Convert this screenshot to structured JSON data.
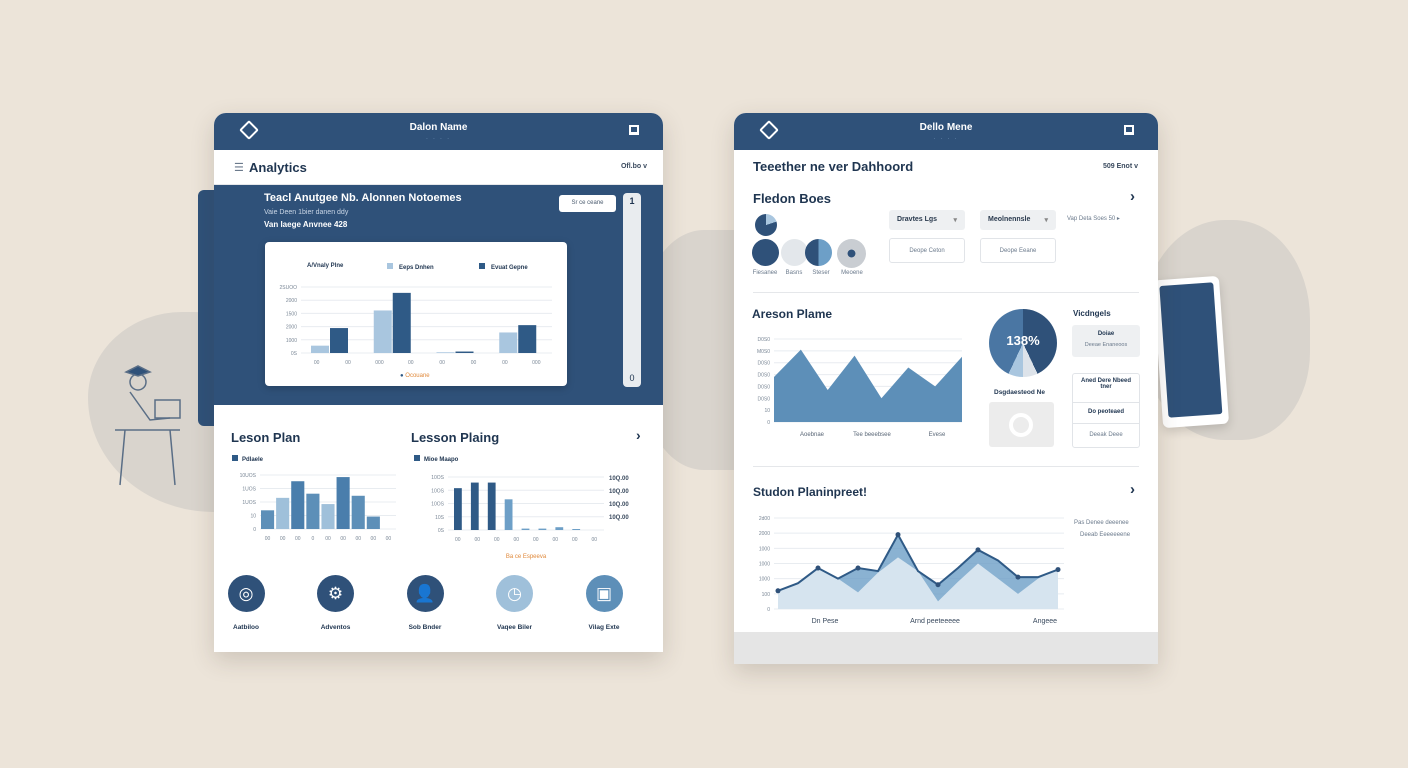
{
  "left_panel": {
    "header": {
      "title": "Dalon Name",
      "subtitle": "· · · ·"
    },
    "toolbar": {
      "title": "Analytics",
      "user_menu": "Ofl.bo v"
    },
    "hero": {
      "title": "Teacl Anutgee Nb. Alonnen Notoemes",
      "subtitle": "Vaie Deen 1bier danen ddy",
      "highlight": "Van Iaege Anvnee 428",
      "button": "Sr ce ceane"
    },
    "scroll": {
      "top": "1",
      "bottom": "0"
    },
    "main_chart": {
      "title": "A/Vnaly Plne",
      "legend": [
        "Eeps Dnhen",
        "Evuat Gepne"
      ],
      "yticks": [
        "2SUOO",
        "2000",
        "1500",
        "2000",
        "1000",
        "0S"
      ],
      "xticks": [
        "00",
        "00",
        "000",
        "00",
        "00",
        "00",
        "00",
        "000"
      ],
      "footer": "Ocouane",
      "groups": [
        [
          0.5,
          1.7
        ],
        [
          2.9,
          4.1
        ],
        [
          0.05,
          0.1
        ],
        [
          1.4,
          1.9
        ]
      ],
      "colors": [
        "#a9c6df",
        "#2f5a86"
      ]
    },
    "lesson_plan": {
      "title": "Leson Plan",
      "legend": "Pdlaele",
      "yticks": [
        "10UOS",
        "1UOS",
        "1UOS",
        "10",
        "0"
      ],
      "xticks": [
        "00",
        "00",
        "00",
        "0",
        "00",
        "00",
        "00",
        "00",
        "00"
      ],
      "values": [
        0.9,
        1.5,
        2.3,
        1.7,
        1.2,
        2.5,
        1.6,
        0.6
      ]
    },
    "lesson_plaing": {
      "title": "Lesson Plaing",
      "legend": "Mioe Maapo",
      "yticks": [
        "10OS",
        "10OS",
        "10OS",
        "10S",
        "0S"
      ],
      "right_ticks": [
        "10Q.00",
        "10Q.00",
        "10Q.00",
        "10Q.00"
      ],
      "xticks": [
        "00",
        "00",
        "00",
        "00",
        "00",
        "00",
        "00",
        "00"
      ],
      "footer": "Ba ce Espeeva",
      "values": [
        3.0,
        3.4,
        3.4,
        2.2,
        0.1,
        0.1,
        0.2,
        0.05
      ]
    },
    "actions": [
      {
        "label": "Aatbiloo",
        "icon": "target-icon",
        "color": "#2f5179"
      },
      {
        "label": "Adventos",
        "icon": "gear-icon",
        "color": "#2f5179"
      },
      {
        "label": "Sob Bnder",
        "icon": "user-icon",
        "color": "#2f5179"
      },
      {
        "label": "Vaqee Biler",
        "icon": "clock-icon",
        "color": "#9fc0da"
      },
      {
        "label": "Vilag Exte",
        "icon": "tablet-chart-icon",
        "color": "#5d8fb8"
      }
    ]
  },
  "right_panel": {
    "header": {
      "title": "Dello Mene",
      "subtitle": "· · · ·"
    },
    "toolbar": {
      "title": "Teeether ne ver Dahhoord",
      "user_menu": "509 Enot v"
    },
    "fledon": {
      "title": "Fledon Boes",
      "circles": [
        "Fiesanee",
        "Basns",
        "Steser",
        "Meoene"
      ],
      "select1": "Dravtes Lgs",
      "select2": "Meolnennsle",
      "box1": "Deope Ceton",
      "box2": "Deope Eeane",
      "link": "Vap Deta Soes 50"
    },
    "areson": {
      "title": "Areson Plame",
      "yticks": [
        "D0S0",
        "M0S0",
        "D0S0",
        "D0S0",
        "D0S0",
        "D0S0",
        "10",
        "0"
      ],
      "xticks": [
        "Aoebnae",
        "Tee beeebsee",
        "Evese"
      ],
      "values": [
        3.8,
        6.1,
        2.7,
        5.6,
        2.0,
        4.6,
        3.0,
        5.5
      ]
    },
    "gauge": {
      "value": "138%",
      "label": "Dsgdaesteod",
      "suffix": "Ne"
    },
    "side": {
      "title": "Vicdngels",
      "card_title": "Doiae",
      "card_sub": "Deeae Enaneoos",
      "list": [
        "Aned Dere Nbeed tner",
        "Do peoteaed",
        "Deeak Deee"
      ]
    },
    "student": {
      "title": "Studon Planinpreet!",
      "yticks": [
        "2d00",
        "2000",
        "1000",
        "1000",
        "1000",
        "100",
        "0"
      ],
      "xticks": [
        "Dn Pese",
        "Arnd peeteeeee",
        "Angeee"
      ],
      "legend": [
        "Pas Denee deeenee",
        "Deeab Eeeeeeene"
      ],
      "dark": [
        1.2,
        1.7,
        2.7,
        2.0,
        2.7,
        2.5,
        4.9,
        2.5,
        1.6,
        2.7,
        3.9,
        3.2,
        2.1,
        2.1,
        2.6
      ],
      "light": [
        1.2,
        1.7,
        2.7,
        2.0,
        1.1,
        2.4,
        3.4,
        2.5,
        0.5,
        1.8,
        3.0,
        2.0,
        1.0,
        2.0,
        2.6
      ]
    }
  }
}
